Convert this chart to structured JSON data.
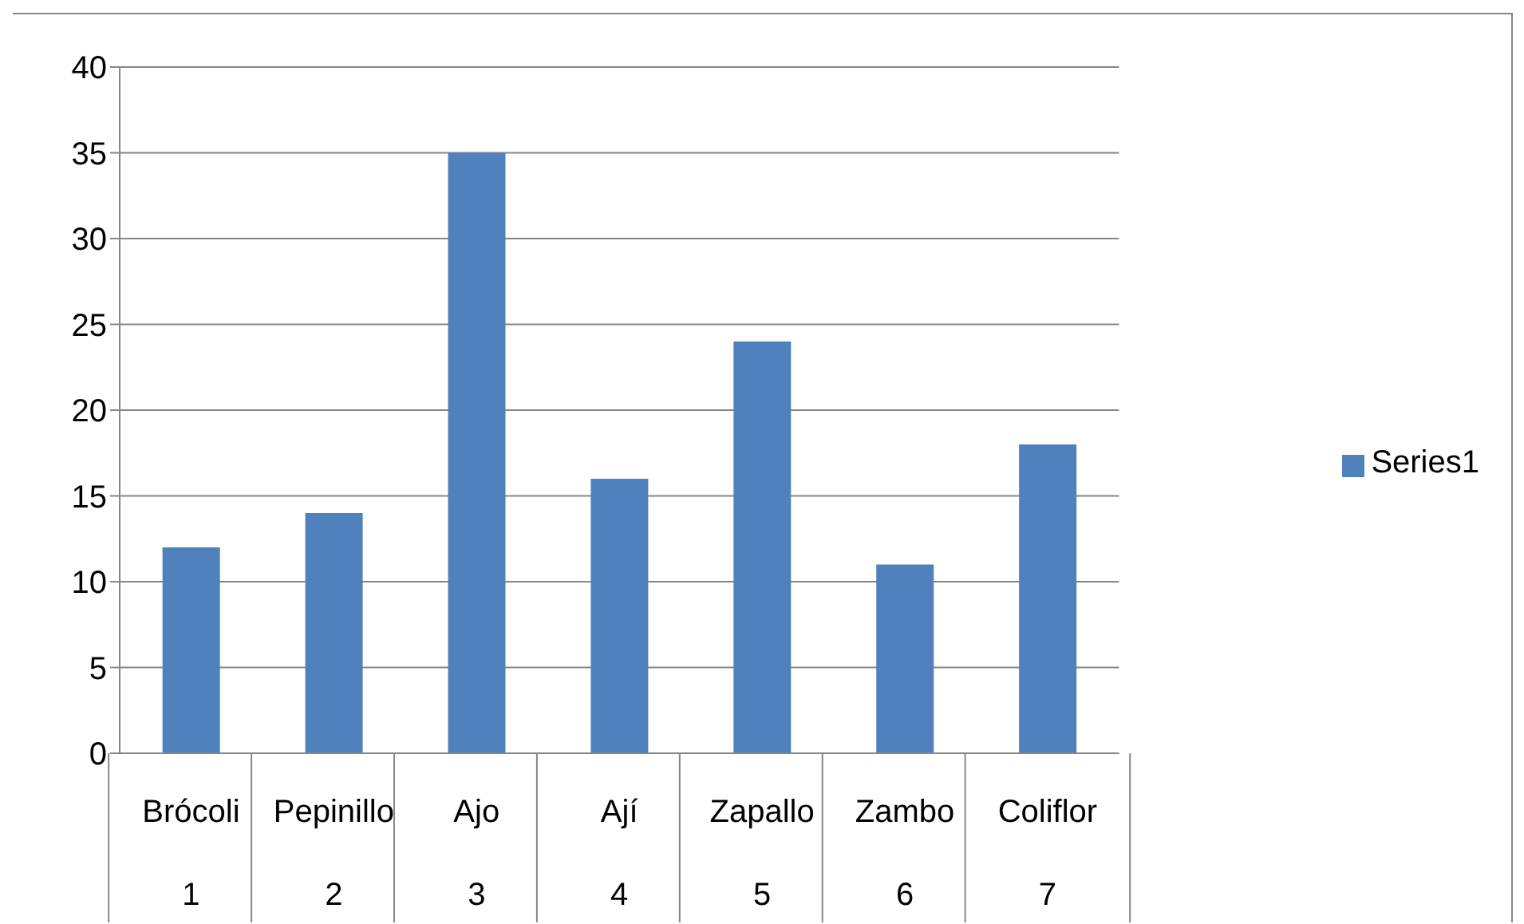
{
  "chart_data": {
    "type": "bar",
    "categories": [
      "Brócoli\n1",
      "Pepinillo\n2",
      "Ajo\n3",
      "Ají\n4",
      "Zapallo\n5",
      "Zambo\n6",
      "Coliflor\n7"
    ],
    "series": [
      {
        "name": "Series1",
        "color": "#4f81bd",
        "values": [
          12,
          14,
          35,
          16,
          24,
          11,
          18
        ]
      }
    ],
    "ylim": [
      0,
      40
    ],
    "yticks": [
      0,
      5,
      10,
      15,
      20,
      25,
      30,
      35,
      40
    ],
    "grid": "y",
    "legend": "right"
  }
}
